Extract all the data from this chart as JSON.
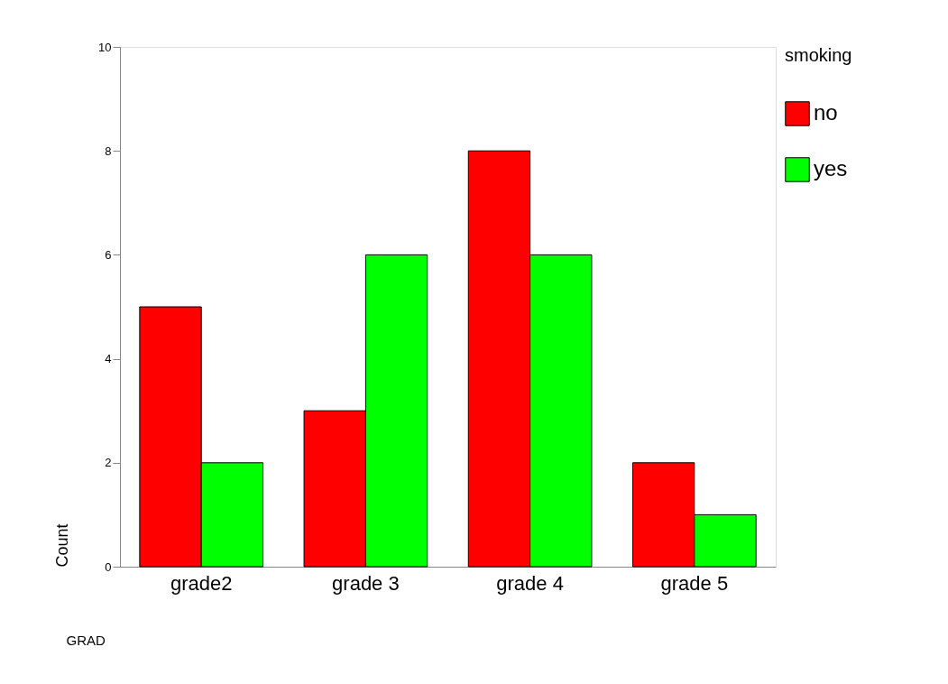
{
  "chart_data": {
    "type": "bar",
    "xlabel": "GRAD",
    "ylabel": "Count",
    "legend_title": "smoking",
    "categories": [
      "grade2",
      "grade 3",
      "grade 4",
      "grade 5"
    ],
    "series": [
      {
        "name": "no",
        "color": "#ff0000",
        "values": [
          5,
          3,
          8,
          2
        ]
      },
      {
        "name": "yes",
        "color": "#00ff00",
        "values": [
          2,
          6,
          6,
          1
        ]
      }
    ],
    "ylim": [
      0,
      10
    ],
    "yticks": [
      0,
      2,
      4,
      6,
      8,
      10
    ],
    "grid": false,
    "legend": "right"
  }
}
